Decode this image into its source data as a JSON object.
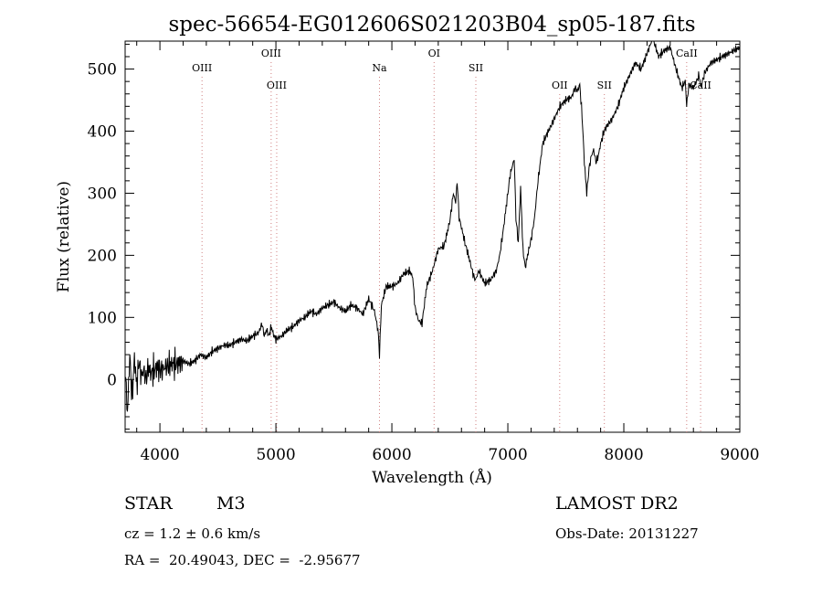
{
  "chart_data": {
    "type": "line",
    "title": "spec-56654-EG012606S021203B04_sp05-187.fits",
    "xlabel": "Wavelength (Å)",
    "ylabel": "Flux (relative)",
    "xlim": [
      3700,
      9000
    ],
    "ylim": [
      -85,
      545
    ],
    "x_ticks": [
      4000,
      5000,
      6000,
      7000,
      8000,
      9000
    ],
    "y_ticks": [
      0,
      100,
      200,
      300,
      400,
      500
    ],
    "grid": false,
    "line_color": "#000000",
    "line_markers": [
      {
        "label": "OIII",
        "x": 4363,
        "row": "upper"
      },
      {
        "label": "OIII",
        "x": 4959,
        "row": "top"
      },
      {
        "label": "OIII",
        "x": 5007,
        "row": "lower"
      },
      {
        "label": "Na",
        "x": 5893,
        "row": "upper"
      },
      {
        "label": "OI",
        "x": 6364,
        "row": "top"
      },
      {
        "label": "SII",
        "x": 6724,
        "row": "upper"
      },
      {
        "label": "OII",
        "x": 7447,
        "row": "lower"
      },
      {
        "label": "SII",
        "x": 7832,
        "row": "lower"
      },
      {
        "label": "CaII",
        "x": 8542,
        "row": "top"
      },
      {
        "label": "CaII",
        "x": 8662,
        "row": "lower"
      }
    ],
    "marker_color": "#d08080",
    "series": [
      {
        "x": [
          3700,
          3720,
          3740,
          3760,
          3780,
          3800,
          3820,
          3840,
          3860,
          3880,
          3900,
          3920,
          3950,
          3980,
          4000,
          4050,
          4100,
          4150,
          4200,
          4250,
          4300,
          4350,
          4400,
          4450,
          4500,
          4550,
          4600,
          4650,
          4700,
          4750,
          4800,
          4850,
          4880,
          4900,
          4920,
          4940,
          4960,
          4980,
          5000,
          5050,
          5100,
          5150,
          5200,
          5250,
          5300,
          5350,
          5400,
          5450,
          5500,
          5550,
          5600,
          5650,
          5700,
          5750,
          5800,
          5850,
          5880,
          5893,
          5910,
          5950,
          6000,
          6050,
          6100,
          6150,
          6180,
          6200,
          6230,
          6260,
          6300,
          6350,
          6400,
          6450,
          6500,
          6530,
          6550,
          6563,
          6580,
          6600,
          6630,
          6660,
          6700,
          6720,
          6750,
          6800,
          6850,
          6900,
          6930,
          6960,
          7000,
          7020,
          7040,
          7055,
          7070,
          7090,
          7110,
          7130,
          7150,
          7170,
          7200,
          7230,
          7260,
          7300,
          7350,
          7400,
          7450,
          7500,
          7550,
          7580,
          7600,
          7620,
          7640,
          7660,
          7680,
          7700,
          7720,
          7740,
          7760,
          7780,
          7800,
          7830,
          7860,
          7900,
          7950,
          8000,
          8050,
          8100,
          8150,
          8200,
          8250,
          8300,
          8350,
          8400,
          8450,
          8500,
          8530,
          8542,
          8560,
          8600,
          8650,
          8662,
          8700,
          8750,
          8800,
          8850,
          8900,
          8950,
          9000
        ],
        "y": [
          20,
          -55,
          40,
          -30,
          35,
          -10,
          30,
          5,
          15,
          0,
          20,
          10,
          15,
          20,
          15,
          20,
          25,
          25,
          30,
          25,
          30,
          40,
          35,
          45,
          50,
          55,
          55,
          60,
          65,
          62,
          70,
          75,
          90,
          70,
          80,
          70,
          85,
          72,
          65,
          70,
          80,
          85,
          95,
          100,
          110,
          105,
          115,
          120,
          125,
          115,
          110,
          120,
          115,
          105,
          130,
          110,
          80,
          40,
          120,
          150,
          150,
          155,
          170,
          175,
          165,
          115,
          95,
          90,
          150,
          175,
          210,
          215,
          255,
          300,
          285,
          320,
          260,
          245,
          220,
          200,
          170,
          160,
          175,
          155,
          160,
          175,
          200,
          240,
          300,
          330,
          345,
          355,
          260,
          220,
          310,
          210,
          180,
          200,
          225,
          260,
          320,
          380,
          400,
          420,
          440,
          450,
          455,
          470,
          465,
          475,
          425,
          350,
          300,
          340,
          360,
          370,
          350,
          360,
          380,
          400,
          410,
          420,
          440,
          470,
          490,
          510,
          500,
          525,
          550,
          520,
          530,
          535,
          500,
          470,
          480,
          440,
          475,
          470,
          490,
          470,
          495,
          510,
          515,
          520,
          525,
          530,
          535
        ]
      }
    ]
  },
  "info": {
    "star_label": "STAR",
    "class_label": "M3",
    "survey_label": "LAMOST DR2",
    "cz_text": "cz = 1.2 ± 0.6 km/s",
    "obs_date_text": "Obs-Date: 20131227",
    "coords_text": "RA =  20.49043, DEC =  -2.95677"
  }
}
